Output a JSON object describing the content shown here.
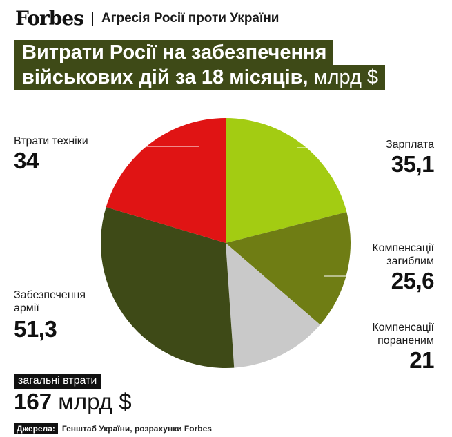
{
  "header": {
    "logo": "Forbes",
    "section": "Агресія Росії проти України"
  },
  "title": {
    "line1": "Витрати Росії на забезпечення",
    "line2_bold": "військових дій за 18 місяців,",
    "line2_unit": " млрд $"
  },
  "labels": {
    "salary": {
      "name": "Зарплата",
      "value": "35,1"
    },
    "killed": {
      "name1": "Компенсації",
      "name2": "загиблим",
      "value": "25,6"
    },
    "wounded": {
      "name1": "Компенсації",
      "name2": "пораненим",
      "value": "21"
    },
    "army": {
      "name1": "Забезпечення",
      "name2": "армії",
      "value": "51,3"
    },
    "equipment": {
      "name": "Втрати техніки",
      "value": "34"
    }
  },
  "total": {
    "badge": "загальні втрати",
    "value": "167",
    "unit": " млрд $"
  },
  "source": {
    "label": "Джерела:",
    "text": "Генштаб України, розрахунки Forbes"
  },
  "chart_data": {
    "type": "pie",
    "title": "Витрати Росії на забезпечення військових дій за 18 місяців, млрд $",
    "categories": [
      "Зарплата",
      "Компенсації загиблим",
      "Компенсації пораненим",
      "Забезпечення армії",
      "Втрати техніки"
    ],
    "values": [
      35.1,
      25.6,
      21,
      51.3,
      34
    ],
    "colors": [
      "#a3cc12",
      "#6f7d14",
      "#c9c9c9",
      "#3e4a17",
      "#e01414"
    ],
    "total": 167,
    "unit": "млрд $"
  }
}
